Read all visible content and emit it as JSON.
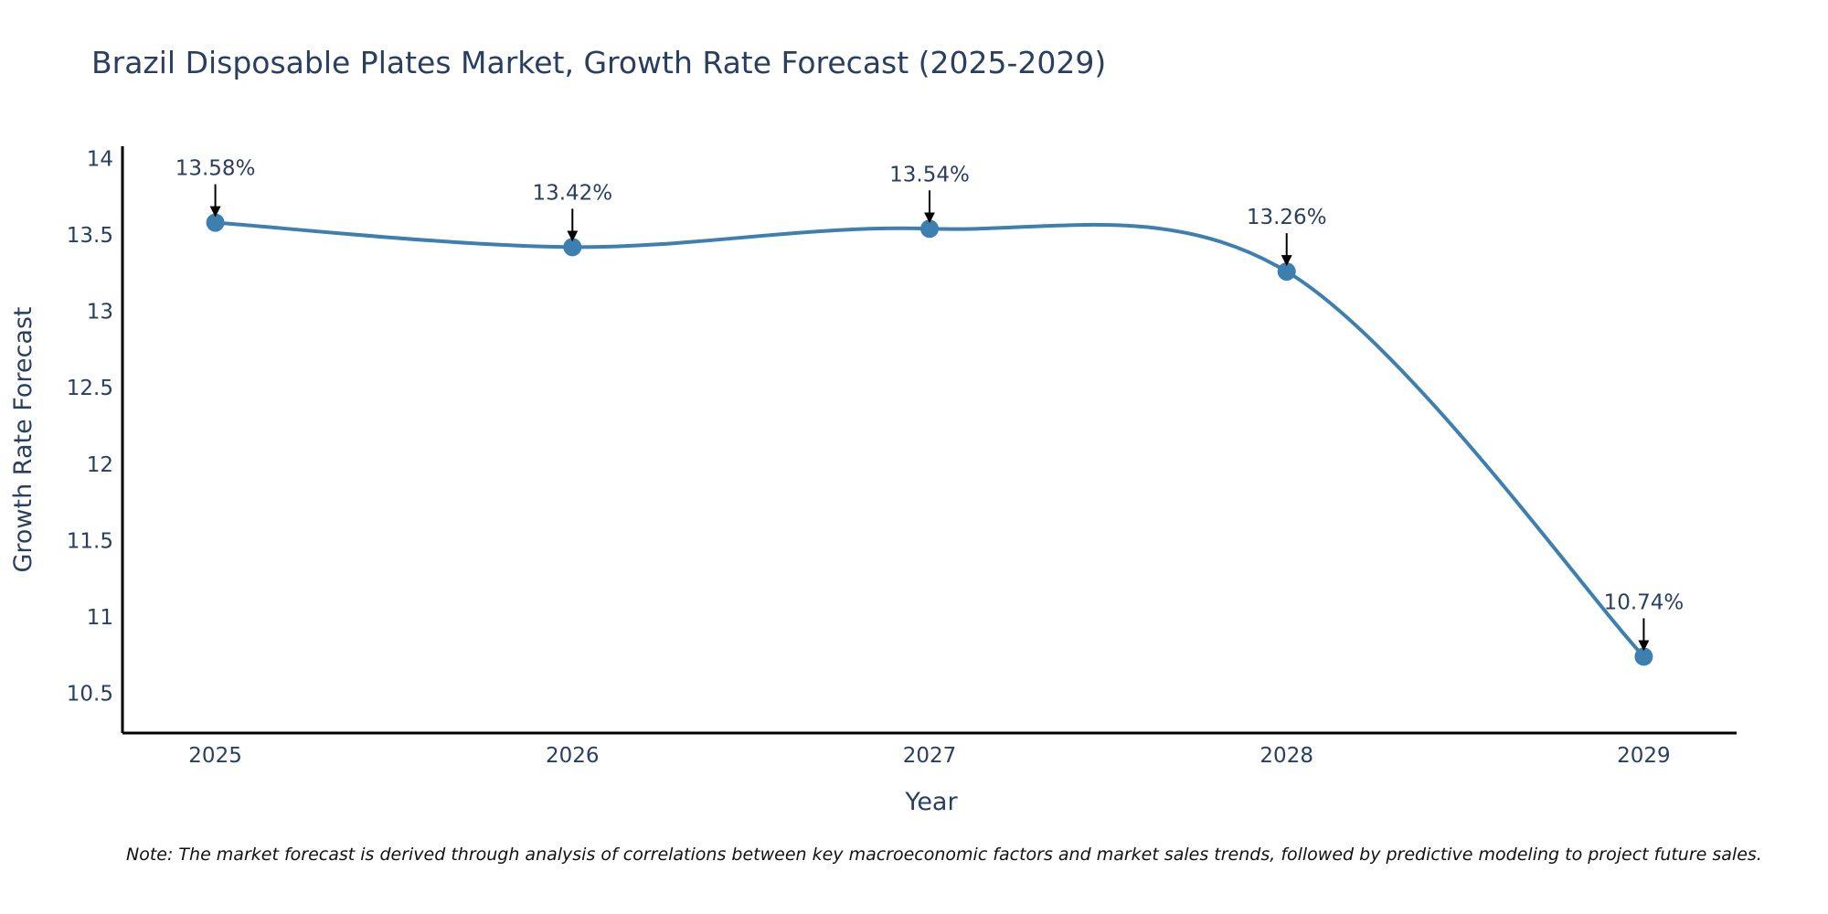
{
  "chart_data": {
    "type": "line",
    "title": "Brazil Disposable Plates Market, Growth Rate Forecast (2025-2029)",
    "xlabel": "Year",
    "ylabel": "Growth Rate Forecast",
    "categories": [
      "2025",
      "2026",
      "2027",
      "2028",
      "2029"
    ],
    "x": [
      2025,
      2026,
      2027,
      2028,
      2029
    ],
    "series": [
      {
        "name": "Growth Rate Forecast",
        "values": [
          13.58,
          13.42,
          13.54,
          13.26,
          10.74
        ],
        "labels": [
          "13.58%",
          "13.42%",
          "13.54%",
          "13.26%",
          "10.74%"
        ],
        "color": "#3d7fae"
      }
    ],
    "ylim": [
      10.24,
      14.08
    ],
    "xlim": [
      2024.74,
      2029.26
    ],
    "yticks": [
      10.5,
      11,
      11.5,
      12,
      12.5,
      13,
      13.5,
      14
    ],
    "ytick_labels": [
      "10.5",
      "11",
      "11.5",
      "12",
      "12.5",
      "13",
      "13.5",
      "14"
    ],
    "line_shape": "spline",
    "grid": false,
    "annotation_style": "arrow",
    "note": "Note: The market forecast is derived through analysis of correlations between key macroeconomic factors and market sales trends, followed by predictive modeling to project future sales."
  },
  "colors": {
    "line": "#3d7fae",
    "marker": "#3d7fae",
    "text": "#2a3f5f",
    "axis": "#000000",
    "arrow": "#000000"
  }
}
